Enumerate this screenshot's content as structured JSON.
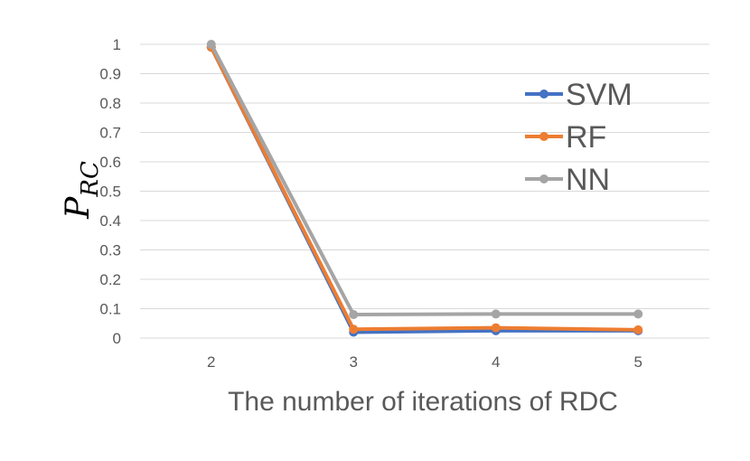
{
  "chart_data": {
    "type": "line",
    "title": "",
    "xlabel": "The number of iterations of RDC",
    "ylabel": {
      "main": "P",
      "subscript": "RC"
    },
    "categories": [
      "2",
      "3",
      "4",
      "5"
    ],
    "ylim": [
      0,
      1
    ],
    "yticks": [
      "0",
      "0.1",
      "0.2",
      "0.3",
      "0.4",
      "0.5",
      "0.6",
      "0.7",
      "0.8",
      "0.9",
      "1"
    ],
    "grid": true,
    "legend_position": "top-right",
    "series": [
      {
        "name": "SVM",
        "color": "#4472C4",
        "values": [
          0.99,
          0.02,
          0.025,
          0.025
        ]
      },
      {
        "name": "RF",
        "color": "#ED7D31",
        "values": [
          0.99,
          0.03,
          0.035,
          0.028
        ]
      },
      {
        "name": "NN",
        "color": "#A5A5A5",
        "values": [
          1.0,
          0.08,
          0.082,
          0.082
        ]
      }
    ]
  }
}
